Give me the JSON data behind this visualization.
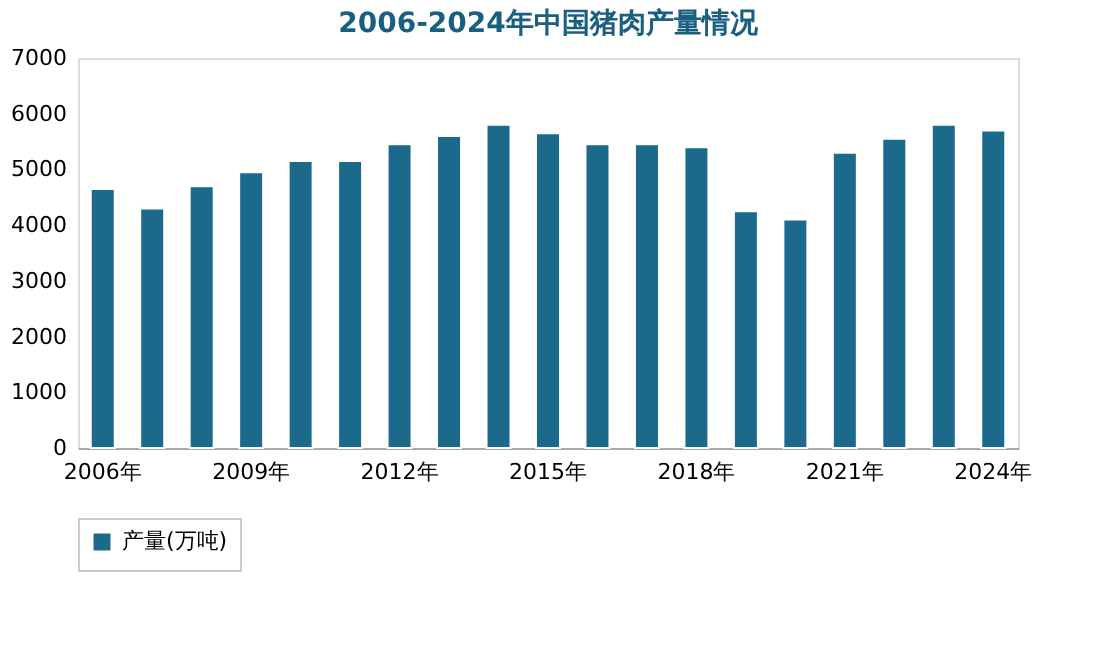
{
  "chart_data": {
    "type": "bar",
    "title": "2006-2024年中国猪肉产量情况",
    "categories": [
      "2006年",
      null,
      null,
      "2009年",
      null,
      null,
      "2012年",
      null,
      null,
      "2015年",
      null,
      null,
      "2018年",
      null,
      null,
      "2021年",
      null,
      null,
      "2024年"
    ],
    "series": [
      {
        "name": "产量(万吨)",
        "color": "#1b6a8c",
        "values": [
          4650,
          4300,
          4700,
          4950,
          5150,
          5150,
          5450,
          5600,
          5800,
          5650,
          5450,
          5450,
          5400,
          4250,
          4100,
          5300,
          5550,
          5800,
          5700
        ]
      }
    ],
    "ylim": [
      0,
      7000
    ],
    "yticks": [
      0,
      1000,
      2000,
      3000,
      4000,
      5000,
      6000,
      7000
    ],
    "grid": false,
    "legend": "bottom"
  }
}
